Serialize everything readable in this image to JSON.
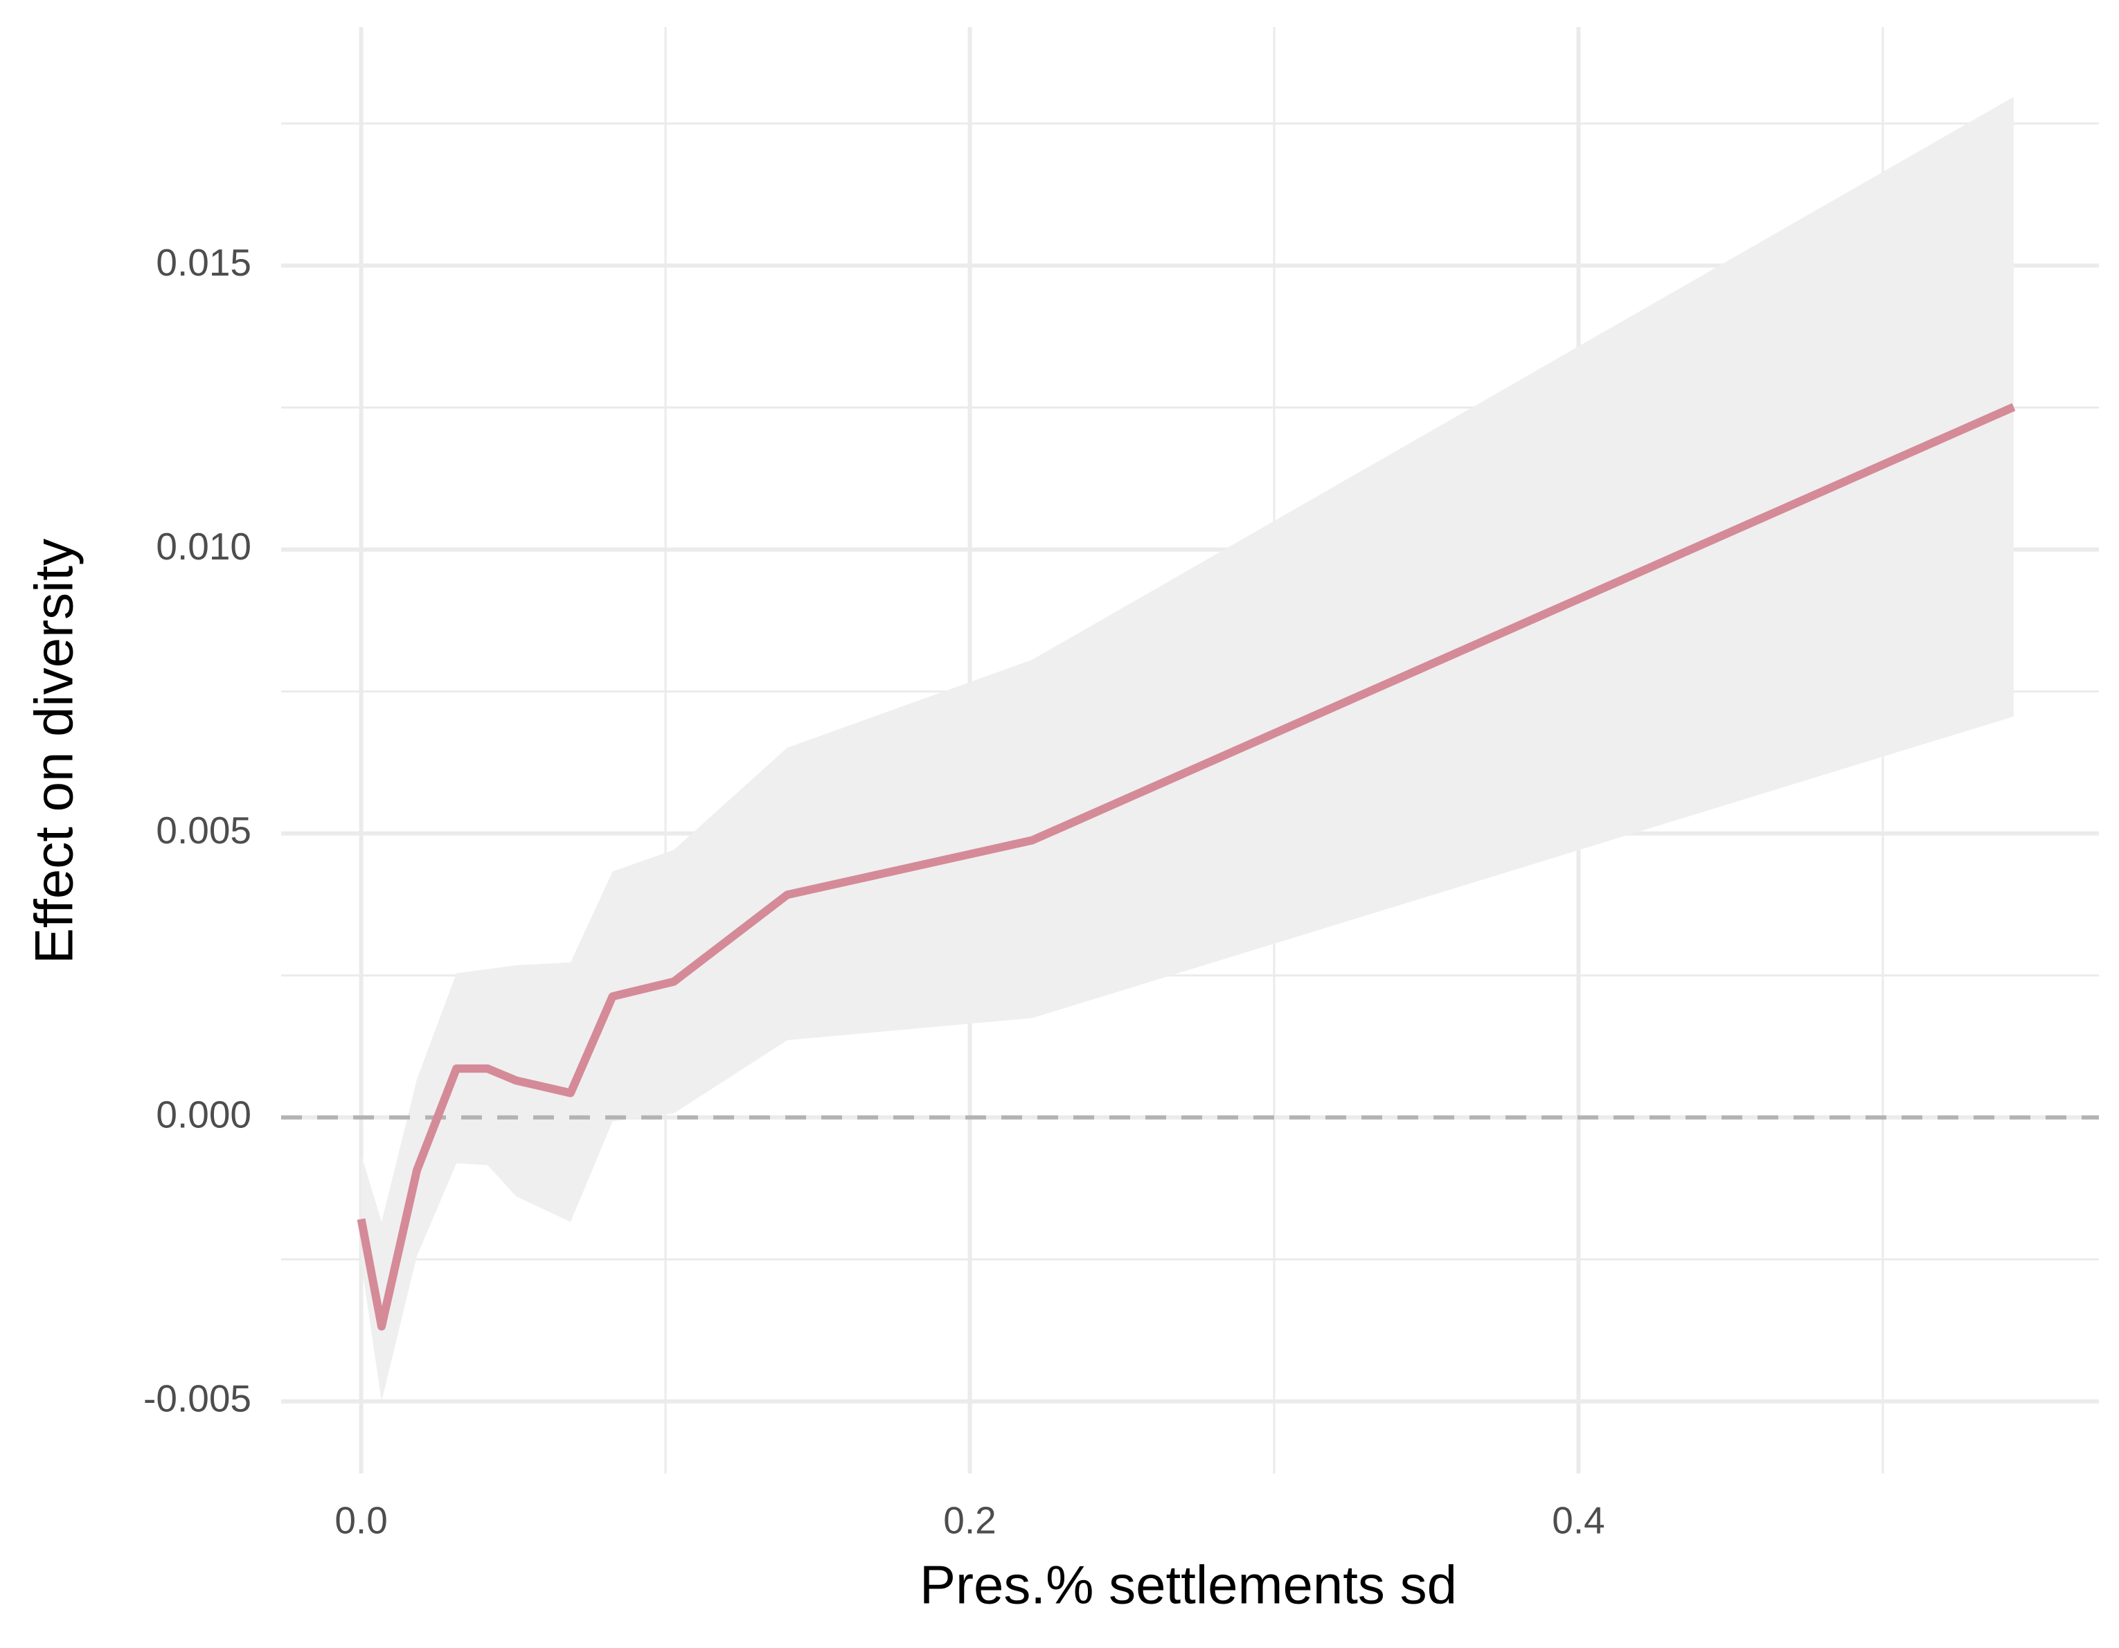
{
  "chart_data": {
    "type": "line",
    "x_label": "Pres.% settlements sd",
    "y_label": "Effect on diversity",
    "x": [
      0,
      0.0067,
      0.0183,
      0.0313,
      0.0415,
      0.0509,
      0.0688,
      0.0826,
      0.1027,
      0.14,
      0.2205,
      0.543
    ],
    "values": [
      -0.00179,
      -0.00368,
      -0.00093,
      0.00086,
      0.00086,
      0.00065,
      0.00043,
      0.00213,
      0.00239,
      0.00392,
      0.00488,
      0.01251
    ],
    "upper": [
      -0.00065,
      -0.00184,
      0.00067,
      0.00254,
      0.00261,
      0.00268,
      0.00273,
      0.00433,
      0.00471,
      0.00651,
      0.00806,
      0.01797
    ],
    "lower": [
      -0.00256,
      -0.005,
      -0.00244,
      -0.00081,
      -0.00084,
      -0.00139,
      -0.00184,
      -7e-05,
      7e-05,
      0.00136,
      0.00175,
      0.00706
    ],
    "color": "#d58a98",
    "band_color": "#efefef",
    "hline": 0,
    "xlim": [
      -0.0263,
      0.571
    ],
    "ylim": [
      -0.00627,
      0.0192
    ],
    "xticks": [
      {
        "value": 0,
        "label": "0.0"
      },
      0.2,
      0.4
    ],
    "yticks": [
      {
        "value": -0.005,
        "label": "-0.005"
      },
      {
        "value": 0,
        "label": "0.000"
      },
      {
        "value": 0.005,
        "label": "0.005"
      },
      {
        "value": 0.01,
        "label": "0.010"
      },
      {
        "value": 0.015,
        "label": "0.015"
      }
    ],
    "xminorticks": [
      0.1,
      0.3,
      0.5
    ],
    "yminorticks": [
      -0.0025,
      0.0025,
      0.0075,
      0.0125,
      0.0175
    ],
    "grid": true
  }
}
